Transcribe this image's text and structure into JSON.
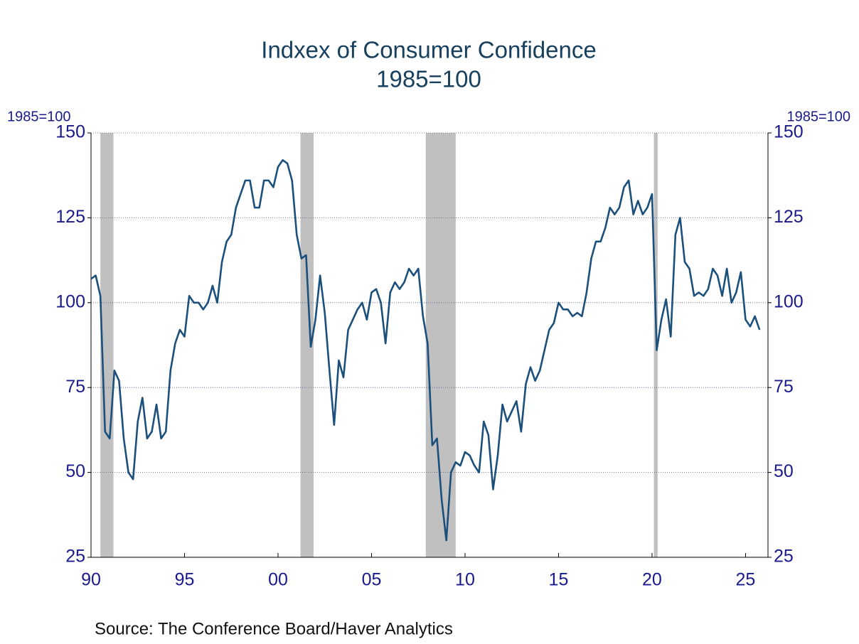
{
  "chart_data": {
    "type": "line",
    "title": "Indxex of Consumer Confidence",
    "subtitle": "1985=100",
    "y_label": "1985=100",
    "y2_label": "1985=100",
    "source": "Source:  The Conference Board/Haver Analytics",
    "xlim": [
      1990,
      2026.2
    ],
    "xticks": [
      {
        "value": 1990,
        "label": "90"
      },
      {
        "value": 1995,
        "label": "95"
      },
      {
        "value": 2000,
        "label": "00"
      },
      {
        "value": 2005,
        "label": "05"
      },
      {
        "value": 2010,
        "label": "10"
      },
      {
        "value": 2015,
        "label": "15"
      },
      {
        "value": 2020,
        "label": "20"
      },
      {
        "value": 2025,
        "label": "25"
      }
    ],
    "ylim": [
      25,
      150
    ],
    "yticks": [
      25,
      50,
      75,
      100,
      125,
      150
    ],
    "y2lim": [
      25,
      150
    ],
    "y2ticks": [
      25,
      50,
      75,
      100,
      125,
      150
    ],
    "grid": true,
    "recessions": [
      [
        1990.5,
        1991.2
      ],
      [
        2001.2,
        2001.9
      ],
      [
        2007.9,
        2009.5
      ],
      [
        2020.1,
        2020.3
      ]
    ],
    "recession_color": "#c0c0c0",
    "x": [
      1990,
      1990.25,
      1990.5,
      1990.75,
      1991,
      1991.25,
      1991.5,
      1991.75,
      1992,
      1992.25,
      1992.5,
      1992.75,
      1993,
      1993.25,
      1993.5,
      1993.75,
      1994,
      1994.25,
      1994.5,
      1994.75,
      1995,
      1995.25,
      1995.5,
      1995.75,
      1996,
      1996.25,
      1996.5,
      1996.75,
      1997,
      1997.25,
      1997.5,
      1997.75,
      1998,
      1998.25,
      1998.5,
      1998.75,
      1999,
      1999.25,
      1999.5,
      1999.75,
      2000,
      2000.25,
      2000.5,
      2000.75,
      2001,
      2001.25,
      2001.5,
      2001.75,
      2002,
      2002.25,
      2002.5,
      2002.75,
      2003,
      2003.25,
      2003.5,
      2003.75,
      2004,
      2004.25,
      2004.5,
      2004.75,
      2005,
      2005.25,
      2005.5,
      2005.75,
      2006,
      2006.25,
      2006.5,
      2006.75,
      2007,
      2007.25,
      2007.5,
      2007.75,
      2008,
      2008.25,
      2008.5,
      2008.75,
      2009,
      2009.25,
      2009.5,
      2009.75,
      2010,
      2010.25,
      2010.5,
      2010.75,
      2011,
      2011.25,
      2011.5,
      2011.75,
      2012,
      2012.25,
      2012.5,
      2012.75,
      2013,
      2013.25,
      2013.5,
      2013.75,
      2014,
      2014.25,
      2014.5,
      2014.75,
      2015,
      2015.25,
      2015.5,
      2015.75,
      2016,
      2016.25,
      2016.5,
      2016.75,
      2017,
      2017.25,
      2017.5,
      2017.75,
      2018,
      2018.25,
      2018.5,
      2018.75,
      2019,
      2019.25,
      2019.5,
      2019.75,
      2020,
      2020.25,
      2020.5,
      2020.75,
      2021,
      2021.25,
      2021.5,
      2021.75,
      2022,
      2022.25,
      2022.5,
      2022.75,
      2023,
      2023.25,
      2023.5,
      2023.75,
      2024,
      2024.25,
      2024.5,
      2024.75,
      2025,
      2025.25,
      2025.5,
      2025.75
    ],
    "series": [
      {
        "name": "Consumer Confidence",
        "color": "#1b4f7c",
        "values": [
          107,
          108,
          102,
          62,
          60,
          80,
          77,
          60,
          50,
          48,
          65,
          72,
          60,
          62,
          70,
          60,
          62,
          80,
          88,
          92,
          90,
          102,
          100,
          100,
          98,
          100,
          105,
          100,
          112,
          118,
          120,
          128,
          132,
          136,
          136,
          128,
          128,
          136,
          136,
          134,
          140,
          142,
          141,
          136,
          120,
          113,
          114,
          87,
          95,
          108,
          97,
          80,
          64,
          83,
          78,
          92,
          95,
          98,
          100,
          95,
          103,
          104,
          100,
          88,
          103,
          106,
          104,
          106,
          110,
          108,
          110,
          96,
          88,
          58,
          60,
          42,
          30,
          50,
          53,
          52,
          56,
          55,
          52,
          50,
          65,
          61,
          45,
          55,
          70,
          65,
          68,
          71,
          62,
          76,
          81,
          77,
          80,
          86,
          92,
          94,
          100,
          98,
          98,
          96,
          97,
          96,
          103,
          113,
          118,
          118,
          122,
          128,
          126,
          128,
          134,
          136,
          126,
          130,
          126,
          128,
          132,
          86,
          95,
          101,
          90,
          120,
          125,
          112,
          110,
          102,
          103,
          102,
          104,
          110,
          108,
          102,
          110,
          100,
          103,
          109,
          95,
          93,
          96,
          92
        ]
      }
    ]
  }
}
